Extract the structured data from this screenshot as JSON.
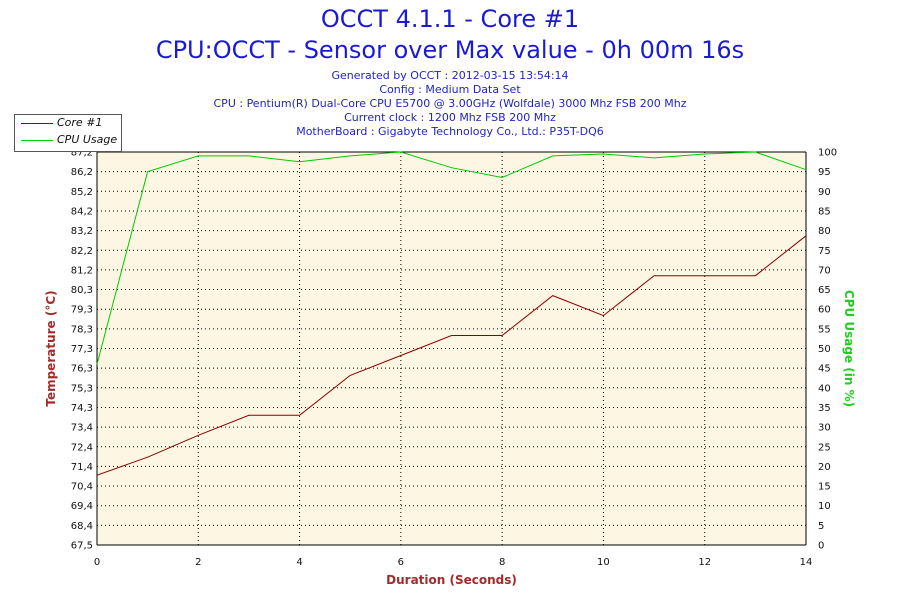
{
  "header": {
    "title": "OCCT 4.1.1 - Core #1",
    "subtitle": "CPU:OCCT - Sensor over Max value - 0h 00m 16s",
    "info_lines": [
      "Generated by OCCT : 2012-03-15 13:54:14",
      "Config : Medium Data Set",
      "CPU : Pentium(R) Dual-Core CPU E5700 @ 3.00GHz (Wolfdale) 3000 Mhz FSB 200 Mhz",
      "Current clock : 1200 Mhz FSB 200 Mhz",
      "MotherBoard : Gigabyte Technology Co., Ltd.: P35T-DQ6"
    ]
  },
  "chart_data": {
    "type": "line",
    "xlabel": "Duration (Seconds)",
    "ylabel_left": "Temperature (°C)",
    "ylabel_right": "CPU Usage (in %)",
    "xlim": [
      0,
      14
    ],
    "x_ticks": [
      "0",
      "2",
      "4",
      "6",
      "8",
      "10",
      "12",
      "14"
    ],
    "ylim_left": [
      67.5,
      87.2
    ],
    "y_ticks_left": [
      "67,5",
      "68,4",
      "69,4",
      "70,4",
      "71,4",
      "72,4",
      "73,4",
      "74,3",
      "75,3",
      "76,3",
      "77,3",
      "78,3",
      "79,3",
      "80,3",
      "81,2",
      "82,2",
      "83,2",
      "84,2",
      "85,2",
      "86,2",
      "87,2"
    ],
    "ylim_right": [
      0,
      100
    ],
    "y_ticks_right": [
      "0",
      "5",
      "10",
      "15",
      "20",
      "25",
      "30",
      "35",
      "40",
      "45",
      "50",
      "55",
      "60",
      "65",
      "70",
      "75",
      "80",
      "85",
      "90",
      "95",
      "100"
    ],
    "grid": true,
    "legend_position": "top-left",
    "series": [
      {
        "name": "Core #1",
        "axis": "left",
        "color": "#8b0000",
        "x": [
          0,
          1,
          2,
          3,
          4,
          5,
          6,
          7,
          8,
          9,
          10,
          11,
          12,
          13,
          14
        ],
        "values": [
          71.0,
          71.9,
          73.0,
          74.0,
          74.0,
          76.0,
          77.0,
          78.0,
          78.0,
          80.0,
          79.0,
          81.0,
          81.0,
          81.0,
          83.0
        ]
      },
      {
        "name": "CPU Usage",
        "axis": "right",
        "color": "#00cc00",
        "x": [
          0,
          1,
          2,
          3,
          4,
          5,
          6,
          7,
          8,
          9,
          10,
          11,
          12,
          13,
          14
        ],
        "values": [
          46,
          95,
          99,
          99,
          97.5,
          99,
          100,
          96,
          93.5,
          99,
          99.5,
          98.5,
          99.5,
          100,
          95.5
        ]
      }
    ]
  }
}
